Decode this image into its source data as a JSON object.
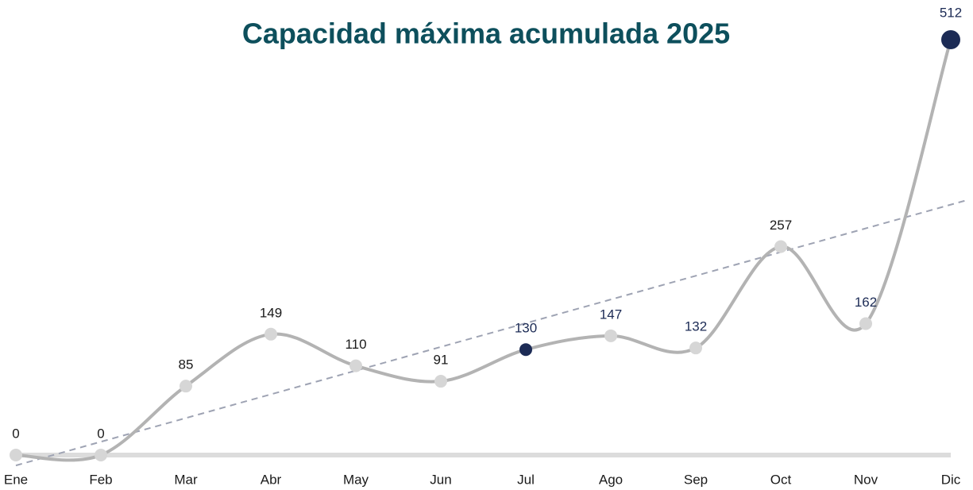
{
  "chart_data": {
    "type": "line",
    "title": "Capacidad máxima acumulada 2025",
    "categories": [
      "Ene",
      "Feb",
      "Mar",
      "Abr",
      "May",
      "Jun",
      "Jul",
      "Ago",
      "Sep",
      "Oct",
      "Nov",
      "Dic"
    ],
    "series": [
      {
        "name": "Capacidad máxima acumulada",
        "color": "#b3b3b3",
        "values": [
          0,
          0,
          85,
          149,
          110,
          91,
          130,
          147,
          132,
          257,
          162,
          512
        ],
        "marker_colors": [
          "#d6d6d6",
          "#d6d6d6",
          "#d6d6d6",
          "#d6d6d6",
          "#d6d6d6",
          "#d6d6d6",
          "#1c2b55",
          "#d6d6d6",
          "#d6d6d6",
          "#d6d6d6",
          "#d6d6d6",
          "#1c2b55"
        ],
        "label_colors": [
          "#1a1a1a",
          "#1a1a1a",
          "#1a1a1a",
          "#1a1a1a",
          "#1a1a1a",
          "#1a1a1a",
          "#1c2b55",
          "#1c2b55",
          "#1c2b55",
          "#1a1a1a",
          "#1c2b55",
          "#1c2b55"
        ]
      }
    ],
    "ylim": [
      0,
      512
    ],
    "trendline": "linear",
    "trendline_color": "#9ea3b3",
    "title_color": "#0d4f5c"
  }
}
